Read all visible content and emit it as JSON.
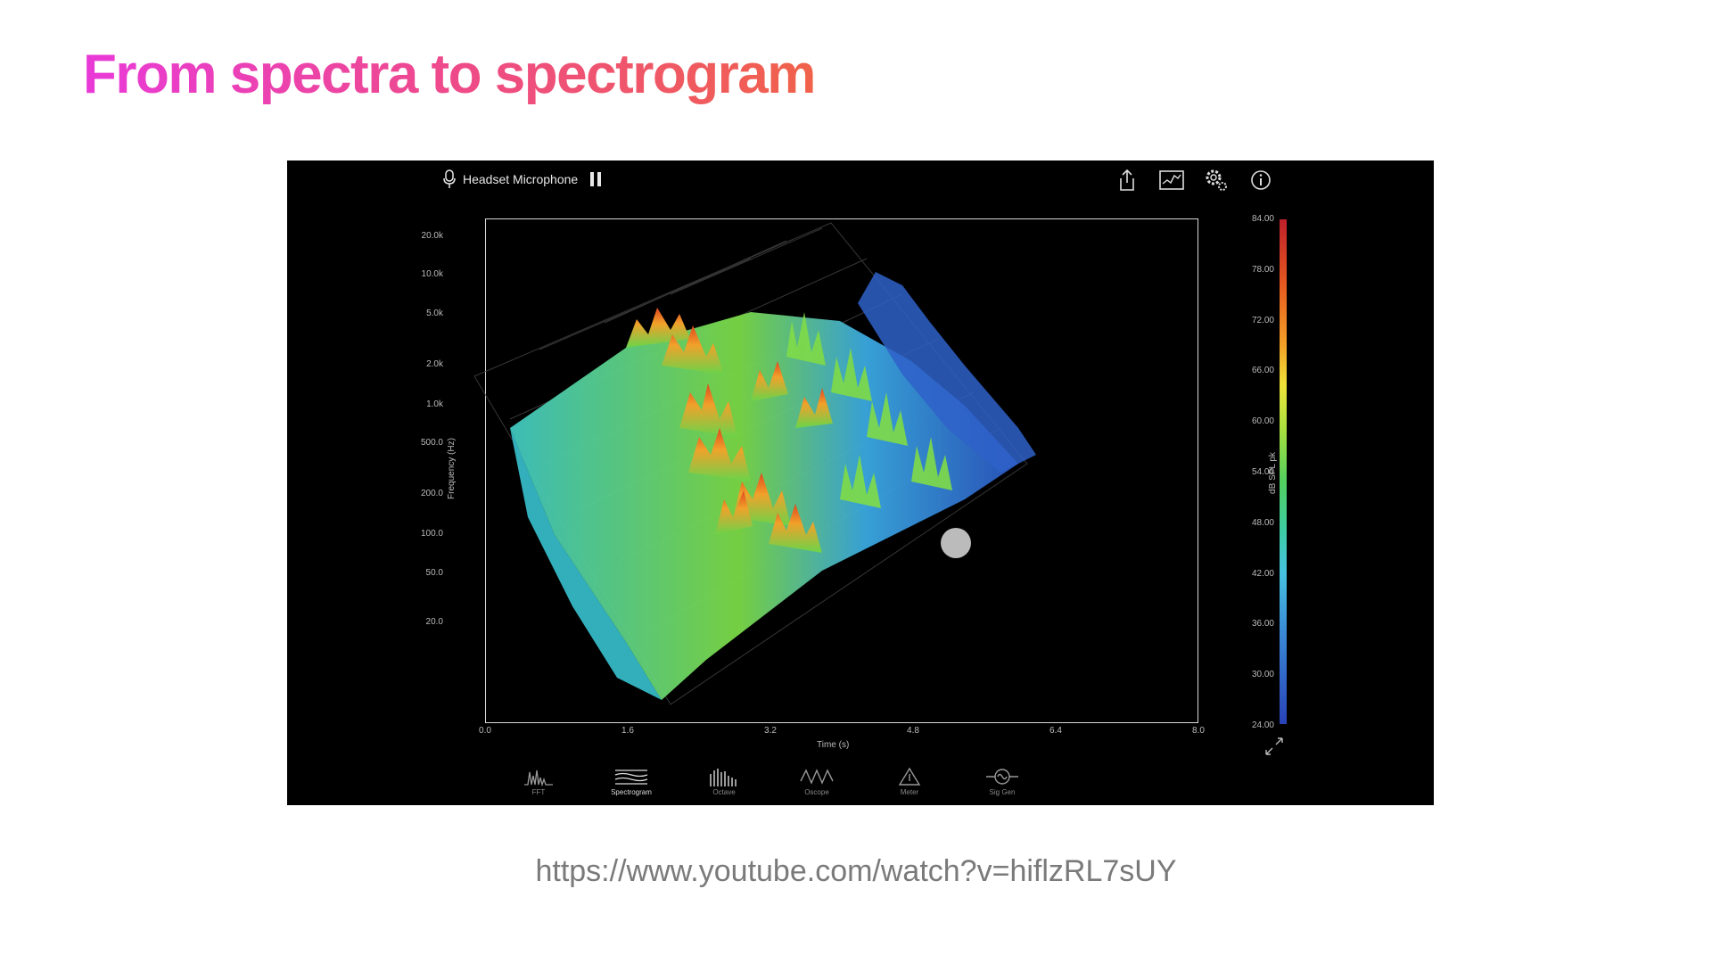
{
  "title": "From spectra to spectrogram",
  "video": {
    "input_device": "Headset Microphone",
    "toolbar_icons": [
      "share-icon",
      "graph-icon",
      "settings-icon",
      "info-icon"
    ],
    "plot": {
      "y_axis_label": "Frequency (Hz)",
      "y_ticks": [
        "20.0k",
        "10.0k",
        "5.0k",
        "2.0k",
        "1.0k",
        "500.0",
        "200.0",
        "100.0",
        "50.0",
        "20.0"
      ],
      "x_axis_label": "Time (s)",
      "x_ticks": [
        "0.0",
        "1.6",
        "3.2",
        "4.8",
        "6.4",
        "8.0"
      ],
      "colorbar_label": "dB SPL pk",
      "colorbar_ticks": [
        "84.00",
        "78.00",
        "72.00",
        "66.00",
        "60.00",
        "54.00",
        "48.00",
        "42.00",
        "36.00",
        "30.00",
        "24.00"
      ]
    },
    "tabs": [
      {
        "label": "FFT",
        "icon": "fft-icon",
        "active": false
      },
      {
        "label": "Spectrogram",
        "icon": "spectrogram-icon",
        "active": true
      },
      {
        "label": "Octave",
        "icon": "octave-icon",
        "active": false
      },
      {
        "label": "Oscope",
        "icon": "oscope-icon",
        "active": false
      },
      {
        "label": "Meter",
        "icon": "meter-icon",
        "active": false
      },
      {
        "label": "Sig Gen",
        "icon": "siggen-icon",
        "active": false
      }
    ]
  },
  "source_url": "https://www.youtube.com/watch?v=hiflzRL7sUY"
}
